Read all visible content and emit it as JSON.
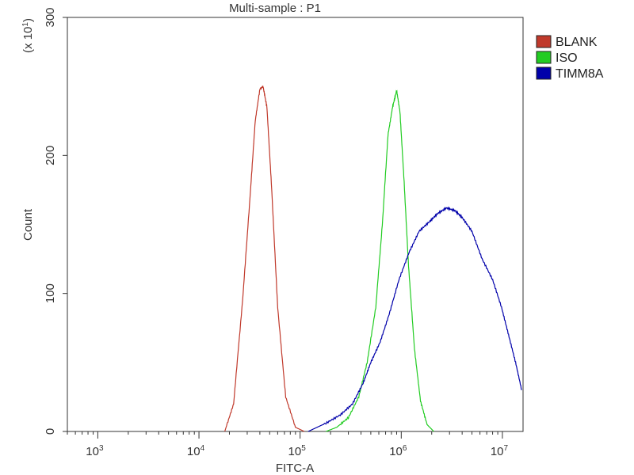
{
  "chart_data": {
    "type": "line",
    "title": "Multi-sample : P1",
    "xlabel": "FITC-A",
    "ylabel": "Count",
    "y_multiplier": {
      "text": "(x 10",
      "exp": "1",
      "close": ")"
    },
    "x_scale": "log",
    "xlim": [
      500,
      16000000
    ],
    "ylim": [
      0,
      300
    ],
    "x_ticks": [
      {
        "base": "10",
        "exp": "3",
        "value": 1000
      },
      {
        "base": "10",
        "exp": "4",
        "value": 10000
      },
      {
        "base": "10",
        "exp": "5",
        "value": 100000
      },
      {
        "base": "10",
        "exp": "6",
        "value": 1000000
      },
      {
        "base": "10",
        "exp": "7",
        "value": 10000000
      }
    ],
    "y_ticks": [
      {
        "label": "0",
        "value": 0
      },
      {
        "label": "100",
        "value": 100
      },
      {
        "label": "200",
        "value": 200
      },
      {
        "label": "300",
        "value": 300
      }
    ],
    "legend_position": "outside-right-top",
    "series": [
      {
        "name": "BLANK",
        "color": "#c0392b",
        "x": [
          18000,
          22000,
          27000,
          32000,
          36000,
          40000,
          43000,
          47000,
          52000,
          60000,
          72000,
          90000,
          110000
        ],
        "y": [
          0,
          20,
          95,
          170,
          225,
          248,
          250,
          235,
          180,
          90,
          25,
          3,
          0
        ]
      },
      {
        "name": "ISO",
        "color": "#22cc22",
        "x": [
          180000,
          230000,
          300000,
          380000,
          460000,
          560000,
          650000,
          740000,
          820000,
          900000,
          970000,
          1060000,
          1180000,
          1350000,
          1550000,
          1800000,
          2100000
        ],
        "y": [
          0,
          3,
          10,
          25,
          50,
          90,
          150,
          215,
          235,
          247,
          232,
          185,
          120,
          60,
          22,
          5,
          0
        ]
      },
      {
        "name": "TIMM8A",
        "color": "#0000aa",
        "x": [
          120000,
          180000,
          250000,
          330000,
          420000,
          500000,
          620000,
          760000,
          950000,
          1200000,
          1500000,
          1900000,
          2300000,
          2800000,
          3400000,
          4000000,
          5000000,
          6300000,
          8000000,
          9800000,
          11500000,
          13500000,
          15500000
        ],
        "y": [
          0,
          6,
          12,
          20,
          35,
          50,
          65,
          85,
          110,
          130,
          145,
          152,
          158,
          162,
          160,
          155,
          145,
          125,
          110,
          90,
          70,
          50,
          30
        ]
      }
    ]
  }
}
